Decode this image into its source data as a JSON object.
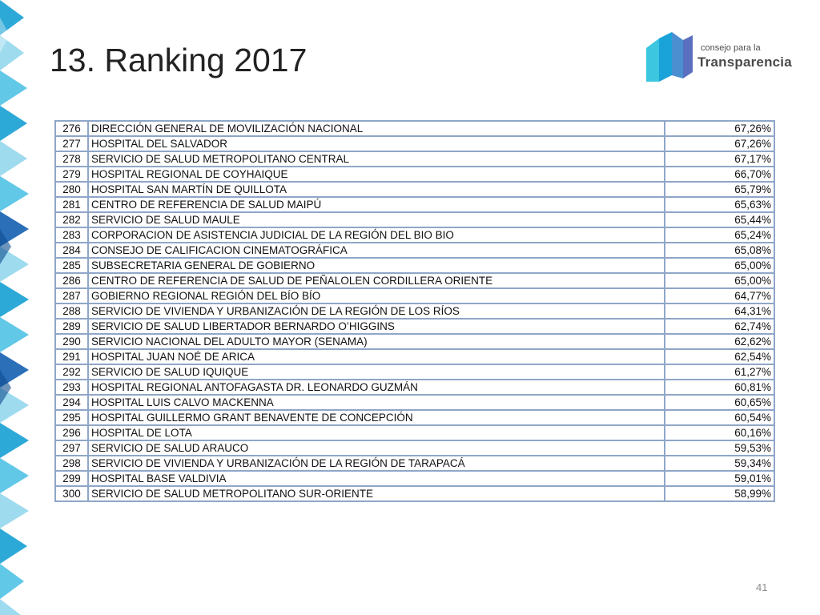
{
  "page": {
    "title": "13. Ranking 2017",
    "page_number": "41"
  },
  "logo": {
    "line1": "consejo para la",
    "line2": "Transparencia",
    "colors": [
      "#1aa3d9",
      "#4b8fd1",
      "#5a6fc0",
      "#3cc6e0"
    ]
  },
  "decoration": {
    "colors": [
      "#2da9d8",
      "#61c8e8",
      "#9fdbef",
      "#2b6fb8",
      "#0f4d8f"
    ]
  },
  "table": {
    "rows": [
      {
        "rank": "276",
        "name": "DIRECCIÓN GENERAL DE MOVILIZACIÓN NACIONAL",
        "score": "67,26%"
      },
      {
        "rank": "277",
        "name": "HOSPITAL DEL SALVADOR",
        "score": "67,26%"
      },
      {
        "rank": "278",
        "name": "SERVICIO DE SALUD METROPOLITANO CENTRAL",
        "score": "67,17%"
      },
      {
        "rank": "279",
        "name": "HOSPITAL REGIONAL DE COYHAIQUE",
        "score": "66,70%"
      },
      {
        "rank": "280",
        "name": "HOSPITAL SAN MARTÍN DE QUILLOTA",
        "score": "65,79%"
      },
      {
        "rank": "281",
        "name": "CENTRO DE REFERENCIA DE SALUD MAIPÚ",
        "score": "65,63%"
      },
      {
        "rank": "282",
        "name": "SERVICIO DE SALUD MAULE",
        "score": "65,44%"
      },
      {
        "rank": "283",
        "name": "CORPORACION DE ASISTENCIA JUDICIAL DE LA REGIÓN DEL BIO BIO",
        "score": "65,24%"
      },
      {
        "rank": "284",
        "name": "CONSEJO DE CALIFICACION CINEMATOGRÁFICA",
        "score": "65,08%"
      },
      {
        "rank": "285",
        "name": "SUBSECRETARIA GENERAL DE GOBIERNO",
        "score": "65,00%"
      },
      {
        "rank": "286",
        "name": "CENTRO DE REFERENCIA DE SALUD DE PEÑALOLEN CORDILLERA ORIENTE",
        "score": "65,00%"
      },
      {
        "rank": "287",
        "name": "GOBIERNO REGIONAL REGIÓN DEL BÍO BÍO",
        "score": "64,77%"
      },
      {
        "rank": "288",
        "name": "SERVICIO DE VIVIENDA Y URBANIZACIÓN DE LA REGIÓN DE LOS RÍOS",
        "score": "64,31%"
      },
      {
        "rank": "289",
        "name": "SERVICIO DE SALUD LIBERTADOR BERNARDO O’HIGGINS",
        "score": "62,74%"
      },
      {
        "rank": "290",
        "name": "SERVICIO NACIONAL DEL ADULTO MAYOR (SENAMA)",
        "score": "62,62%"
      },
      {
        "rank": "291",
        "name": "HOSPITAL JUAN NOÉ DE ARICA",
        "score": "62,54%"
      },
      {
        "rank": "292",
        "name": "SERVICIO DE SALUD IQUIQUE",
        "score": "61,27%"
      },
      {
        "rank": "293",
        "name": "HOSPITAL REGIONAL ANTOFAGASTA DR. LEONARDO GUZMÁN",
        "score": "60,81%"
      },
      {
        "rank": "294",
        "name": "HOSPITAL LUIS CALVO MACKENNA",
        "score": "60,65%"
      },
      {
        "rank": "295",
        "name": "HOSPITAL GUILLERMO GRANT BENAVENTE DE CONCEPCIÓN",
        "score": "60,54%"
      },
      {
        "rank": "296",
        "name": "HOSPITAL DE LOTA",
        "score": "60,16%"
      },
      {
        "rank": "297",
        "name": "SERVICIO DE SALUD ARAUCO",
        "score": "59,53%"
      },
      {
        "rank": "298",
        "name": "SERVICIO DE VIVIENDA Y URBANIZACIÓN DE LA REGIÓN DE TARAPACÁ",
        "score": "59,34%"
      },
      {
        "rank": "299",
        "name": "HOSPITAL BASE VALDIVIA",
        "score": "59,01%"
      },
      {
        "rank": "300",
        "name": "SERVICIO DE SALUD METROPOLITANO SUR-ORIENTE",
        "score": "58,99%"
      }
    ]
  }
}
